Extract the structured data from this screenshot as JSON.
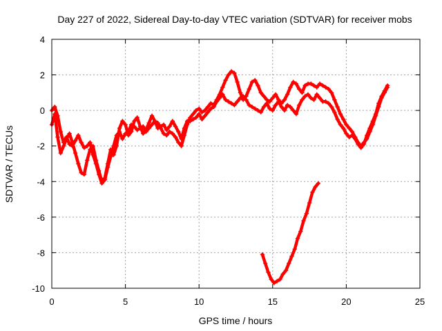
{
  "chart_data": {
    "type": "scatter",
    "title": "Day 227 of 2022, Sidereal Day-to-day VTEC variation (SDTVAR) for receiver mobs",
    "xlabel": "GPS time / hours",
    "ylabel": "SDTVAR / TECUs",
    "xlim": [
      0,
      25
    ],
    "ylim": [
      -10,
      4
    ],
    "xticks": [
      "0",
      "5",
      "10",
      "15",
      "20",
      "25"
    ],
    "yticks": [
      "-10",
      "-8",
      "-6",
      "-4",
      "-2",
      "0",
      "2",
      "4"
    ],
    "grid": true,
    "marker": "plus",
    "color": "#ff0000",
    "series": [
      {
        "name": "main-1",
        "x": [
          0.0,
          0.2,
          0.4,
          0.6,
          0.8,
          1.0,
          1.2,
          1.4,
          1.6,
          1.8,
          2.0,
          2.2,
          2.4,
          2.6,
          2.8,
          3.0,
          3.2,
          3.4,
          3.6,
          3.8,
          4.0,
          4.2,
          4.4,
          4.6,
          4.8,
          5.0,
          5.2,
          5.4,
          5.6,
          5.8,
          6.0,
          6.2,
          6.4,
          6.6,
          6.8,
          7.0,
          7.2,
          7.4,
          7.6,
          7.8,
          8.0,
          8.2,
          8.4,
          8.6,
          8.8,
          9.0,
          9.2,
          9.4,
          9.6,
          9.8,
          10.0,
          10.2,
          10.4,
          10.6,
          10.8,
          11.0,
          11.2,
          11.4,
          11.6,
          11.8,
          12.0,
          12.2,
          12.4,
          12.6,
          12.8,
          13.0,
          13.2,
          13.4,
          13.6,
          13.8,
          14.0,
          14.2,
          14.4,
          14.6,
          14.8,
          15.0,
          15.2,
          15.4,
          15.6,
          15.8,
          16.0,
          16.2,
          16.4,
          16.6,
          16.8,
          17.0,
          17.2,
          17.4,
          17.6,
          17.8,
          18.0,
          18.2,
          18.4,
          18.6,
          18.8,
          19.0,
          19.2,
          19.4,
          19.6,
          19.8,
          20.0,
          20.2,
          20.4,
          20.6,
          20.8,
          21.0,
          21.2,
          21.4,
          21.6,
          21.8,
          22.0,
          22.2,
          22.4,
          22.6,
          22.8
        ],
        "y": [
          0.0,
          0.2,
          -0.3,
          -1.2,
          -1.8,
          -1.5,
          -1.9,
          -2.0,
          -1.7,
          -1.4,
          -1.8,
          -2.1,
          -2.0,
          -1.8,
          -2.5,
          -3.0,
          -3.6,
          -4.1,
          -3.9,
          -3.2,
          -2.6,
          -2.0,
          -1.4,
          -1.2,
          -1.6,
          -1.3,
          -1.2,
          -0.8,
          -0.9,
          -1.1,
          -1.0,
          -0.9,
          -1.2,
          -1.0,
          -0.8,
          -0.6,
          -0.7,
          -1.0,
          -1.3,
          -1.4,
          -1.2,
          -1.3,
          -1.5,
          -1.8,
          -2.0,
          -1.4,
          -0.8,
          -0.4,
          -0.2,
          0.0,
          0.1,
          -0.1,
          0.0,
          0.2,
          0.4,
          0.3,
          0.6,
          0.9,
          1.3,
          1.7,
          2.0,
          2.2,
          2.1,
          1.6,
          1.0,
          0.6,
          0.8,
          1.2,
          1.6,
          1.7,
          1.4,
          1.0,
          0.8,
          0.6,
          0.5,
          0.7,
          0.9,
          0.6,
          0.4,
          0.6,
          0.9,
          1.3,
          1.6,
          1.5,
          1.2,
          1.0,
          1.4,
          1.5,
          1.5,
          1.4,
          1.3,
          1.5,
          1.4,
          1.3,
          1.2,
          1.0,
          0.6,
          0.2,
          -0.2,
          -0.5,
          -0.8,
          -1.0,
          -1.2,
          -1.5,
          -1.8,
          -2.0,
          -1.8,
          -1.6,
          -1.2,
          -0.8,
          -0.3,
          0.2,
          0.7,
          1.0,
          1.3
        ]
      },
      {
        "name": "main-2",
        "x": [
          0.0,
          0.2,
          0.4,
          0.6,
          0.8,
          1.0,
          1.2,
          1.4,
          1.6,
          1.8,
          2.0,
          2.2,
          2.4,
          2.6,
          2.8,
          3.0,
          3.2,
          3.4,
          3.6,
          3.8,
          4.0,
          4.2,
          4.4,
          4.6,
          4.8,
          5.0,
          5.2,
          5.4,
          5.6,
          5.8,
          6.0,
          6.2,
          6.4,
          6.6,
          6.8,
          7.0,
          7.2,
          7.4,
          7.6,
          7.8,
          8.0,
          8.2,
          8.4,
          8.6,
          8.8,
          9.0,
          9.2,
          9.4,
          9.6,
          9.8,
          10.0,
          10.2,
          10.4,
          10.6,
          10.8,
          11.0,
          11.2,
          11.4,
          11.6,
          11.8,
          12.0,
          12.2,
          12.4,
          12.6,
          12.8,
          13.0,
          13.2,
          13.4,
          13.6,
          13.8,
          14.0,
          14.2,
          14.4,
          14.6,
          14.8,
          15.0,
          15.2,
          15.4,
          15.6,
          15.8,
          16.0,
          16.2,
          16.4,
          16.6,
          16.8,
          17.0,
          17.2,
          17.4,
          17.6,
          17.8,
          18.0,
          18.2,
          18.4,
          18.6,
          18.8,
          19.0,
          19.2,
          19.4,
          19.6,
          19.8,
          20.0,
          20.2,
          20.4,
          20.6,
          20.8,
          21.0,
          21.2,
          21.4,
          21.6,
          21.8,
          22.0,
          22.2,
          22.4,
          22.6,
          22.8
        ],
        "y": [
          -0.8,
          -0.2,
          -1.5,
          -2.4,
          -2.0,
          -1.6,
          -1.3,
          -1.8,
          -2.4,
          -3.0,
          -3.5,
          -3.6,
          -2.8,
          -2.2,
          -2.0,
          -2.8,
          -3.4,
          -4.0,
          -3.8,
          -3.0,
          -2.2,
          -2.5,
          -2.0,
          -1.0,
          -0.6,
          -0.8,
          -1.4,
          -1.2,
          -0.6,
          -0.4,
          -0.9,
          -1.3,
          -1.1,
          -0.7,
          -0.3,
          -0.6,
          -1.0,
          -0.9,
          -0.8,
          -1.1,
          -0.9,
          -0.6,
          -0.9,
          -1.2,
          -1.6,
          -1.0,
          -0.6,
          -0.6,
          -0.5,
          -0.4,
          -0.2,
          -0.5,
          -0.3,
          -0.1,
          0.1,
          0.2,
          0.5,
          0.7,
          0.9,
          0.6,
          0.5,
          0.4,
          0.3,
          0.5,
          0.7,
          0.8,
          0.6,
          0.3,
          0.2,
          0.1,
          0.0,
          -0.1,
          0.2,
          0.4,
          0.1,
          0.0,
          0.3,
          0.5,
          0.2,
          0.0,
          0.3,
          0.2,
          0.0,
          -0.2,
          0.3,
          0.6,
          0.8,
          0.9,
          0.7,
          0.6,
          0.9,
          0.7,
          0.5,
          0.5,
          0.4,
          0.2,
          -0.1,
          -0.5,
          -0.8,
          -1.0,
          -1.3,
          -1.5,
          -1.4,
          -1.6,
          -1.9,
          -2.1,
          -1.9,
          -1.4,
          -1.0,
          -0.6,
          -0.2,
          0.4,
          0.8,
          1.1,
          1.4
        ]
      },
      {
        "name": "dip",
        "x": [
          14.3,
          14.5,
          14.7,
          14.9,
          15.1,
          15.3,
          15.5,
          15.7,
          15.9,
          16.1,
          16.3,
          16.5,
          16.7,
          16.9,
          17.1,
          17.3,
          17.5,
          17.7,
          17.9,
          18.1
        ],
        "y": [
          -8.1,
          -8.6,
          -9.1,
          -9.5,
          -9.7,
          -9.6,
          -9.5,
          -9.2,
          -9.0,
          -8.6,
          -8.2,
          -7.8,
          -7.2,
          -6.8,
          -6.2,
          -5.8,
          -5.2,
          -4.6,
          -4.3,
          -4.1
        ]
      }
    ]
  }
}
